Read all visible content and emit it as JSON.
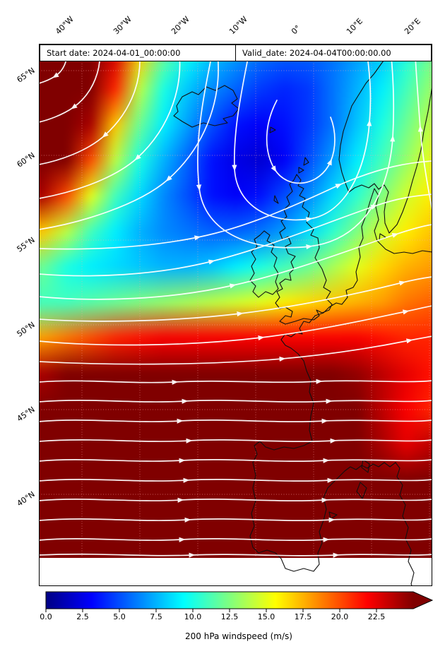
{
  "map": {
    "annotations": {
      "start_date": "Start date: 2024-04-01_00:00:00",
      "valid_date": "Valid_date: 2024-04-04T00:00:00.00"
    },
    "x_ticks": [
      "40°W",
      "30°W",
      "20°W",
      "10°W",
      "0°",
      "10°E",
      "20°E"
    ],
    "y_ticks": [
      "65°N",
      "60°N",
      "55°N",
      "50°N",
      "45°N",
      "40°N"
    ]
  },
  "colorbar": {
    "ticks": [
      "0.0",
      "2.5",
      "5.0",
      "7.5",
      "10.0",
      "12.5",
      "15.0",
      "17.5",
      "20.0",
      "22.5"
    ],
    "label": "200 hPa windspeed (m/s)",
    "vmin": 0,
    "vmax": 25,
    "extend": "max",
    "colors": {
      "jet_stops": [
        [
          0,
          "#000083"
        ],
        [
          0.125,
          "#0000ff"
        ],
        [
          0.375,
          "#00ffff"
        ],
        [
          0.625,
          "#ffff00"
        ],
        [
          0.875,
          "#ff0000"
        ],
        [
          1,
          "#800000"
        ]
      ]
    }
  },
  "chart_data": {
    "type": "heatmap",
    "title": "200 hPa windspeed (m/s)",
    "annotations": [
      "Start date: 2024-04-01_00:00:00",
      "Valid_date: 2024-04-04T00:00:00.00"
    ],
    "projection_extent": {
      "lon": [
        -47.5,
        20.5
      ],
      "lat": [
        34.6,
        66.6
      ]
    },
    "x_tick_values": [
      -40,
      -30,
      -20,
      -10,
      0,
      10,
      20
    ],
    "y_tick_values": [
      65,
      60,
      55,
      50,
      45,
      40
    ],
    "colormap": "jet",
    "colorbar_range": [
      0,
      25
    ],
    "colorbar_extend": "max",
    "overlays": {
      "streamlines": "white wind streamlines with arrowheads",
      "coastlines": "black",
      "gridlines": "faint dotted"
    },
    "grid_lons": [
      -46,
      -42,
      -38,
      -34,
      -30,
      -26,
      -22,
      -18,
      -14,
      -10,
      -6,
      -2,
      2,
      6,
      10,
      14,
      18
    ],
    "grid_lats": [
      65,
      63,
      61,
      59,
      57,
      55,
      53,
      51,
      49,
      47,
      45,
      43,
      41,
      39,
      37
    ],
    "windspeed_grid_ms": [
      [
        27,
        27,
        26,
        23,
        17,
        12,
        9.5,
        8,
        7,
        6,
        5.5,
        5.5,
        6,
        7,
        8,
        10,
        12
      ],
      [
        27,
        27,
        26,
        21,
        14,
        10,
        8,
        6.5,
        5.5,
        4.5,
        4,
        4.5,
        6,
        7.5,
        9,
        11,
        13
      ],
      [
        28,
        27,
        24,
        17,
        12,
        9,
        7,
        5,
        3.5,
        3,
        3.5,
        4.5,
        6,
        8,
        10,
        12,
        14
      ],
      [
        27,
        25,
        20,
        14,
        10,
        7.5,
        5.5,
        3.5,
        2.5,
        2,
        3,
        5,
        7,
        9,
        11,
        13,
        15
      ],
      [
        24,
        20,
        15,
        11,
        8.5,
        6.5,
        5,
        3.5,
        3,
        3.5,
        5,
        6.5,
        8.5,
        10.5,
        12.5,
        14.5,
        16
      ],
      [
        17,
        14,
        11,
        9,
        7.5,
        6.5,
        6,
        5.5,
        5.5,
        6,
        7,
        8.5,
        10.5,
        12.5,
        14.5,
        16,
        17
      ],
      [
        12,
        10,
        9,
        8.5,
        8,
        7.5,
        7.5,
        8,
        9,
        10,
        11,
        12,
        13.5,
        15,
        16.5,
        17.5,
        18
      ],
      [
        11,
        11,
        11.5,
        12,
        12.5,
        13,
        13.5,
        14,
        14.5,
        15,
        16,
        16.5,
        17,
        17.5,
        18,
        19,
        19.5
      ],
      [
        18,
        19,
        20,
        21,
        21.5,
        22,
        22,
        22,
        22,
        22,
        22,
        22,
        22,
        22,
        21.5,
        21,
        21
      ],
      [
        24,
        25.5,
        26.5,
        27,
        27.5,
        27.5,
        27.5,
        27.5,
        27.5,
        27,
        26.5,
        26,
        25.5,
        24.5,
        23.5,
        22.5,
        21.5
      ],
      [
        27,
        28,
        28,
        28,
        28,
        28,
        28,
        28,
        28,
        28,
        27.5,
        27,
        26,
        25,
        23.5,
        22,
        21
      ],
      [
        28,
        28,
        28,
        28,
        28,
        28,
        28,
        28,
        28,
        28,
        28,
        27.5,
        27,
        25.5,
        24,
        22.5,
        23.5
      ],
      [
        28,
        28,
        28,
        28,
        28,
        28,
        28,
        28,
        28,
        28,
        28,
        28,
        27.5,
        26,
        25,
        25.5,
        27
      ],
      [
        28,
        28,
        28,
        28,
        28,
        28,
        28,
        28,
        28,
        28,
        28,
        28,
        27,
        26,
        26.5,
        27.5,
        28
      ],
      [
        28,
        28,
        28,
        28,
        28,
        28,
        28,
        28,
        28,
        28,
        27.5,
        27,
        26.5,
        26.5,
        27.5,
        28,
        28
      ]
    ]
  }
}
